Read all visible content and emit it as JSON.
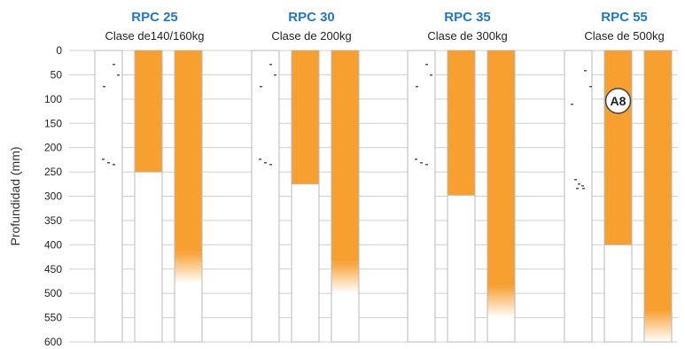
{
  "chart_data": {
    "type": "bar",
    "title": "",
    "ylabel": "Profundidad (mm)",
    "xlabel": "",
    "ylim": [
      0,
      600
    ],
    "yaxis_inverted": true,
    "yticks": [
      0,
      50,
      100,
      150,
      200,
      250,
      300,
      350,
      400,
      450,
      500,
      550,
      600
    ],
    "grid": true,
    "colors": {
      "fill": "#f7a030",
      "frame": "#b8b8b8",
      "title": "#1f78c8"
    },
    "groups": [
      {
        "title": "RPC 25",
        "subtitle": "Clase de140/160kg",
        "bars": [
          250,
          480
        ]
      },
      {
        "title": "RPC 30",
        "subtitle": "Clase de 200kg",
        "bars": [
          275,
          500
        ]
      },
      {
        "title": "RPC 35",
        "subtitle": "Clase de 300kg",
        "bars": [
          298,
          550
        ]
      },
      {
        "title": "RPC 55",
        "subtitle": "Clase de 500kg",
        "bars": [
          400,
          600
        ]
      }
    ],
    "annotations": [
      {
        "label": "A8",
        "group": 3,
        "bar": 0,
        "depth": 100
      }
    ]
  }
}
